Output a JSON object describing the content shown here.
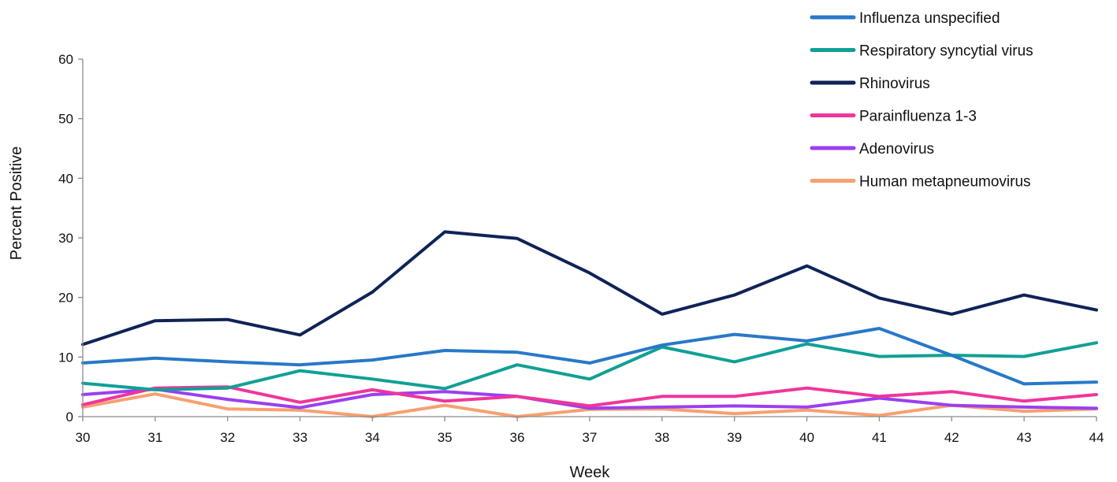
{
  "chart_data": {
    "type": "line",
    "title": "",
    "xlabel": "Week",
    "ylabel": "Percent  Positive",
    "x": [
      30,
      31,
      32,
      33,
      34,
      35,
      36,
      37,
      38,
      39,
      40,
      41,
      42,
      43,
      44
    ],
    "ylim": [
      0,
      60
    ],
    "yticks": [
      0,
      10,
      20,
      30,
      40,
      50,
      60
    ],
    "grid": false,
    "legend_position": "top-right",
    "series": [
      {
        "name": "Influenza unspecified",
        "color": "#2878c8",
        "values": [
          9.0,
          9.8,
          9.2,
          8.7,
          9.5,
          11.1,
          10.8,
          9.0,
          12.0,
          13.8,
          12.7,
          14.8,
          10.3,
          5.5,
          5.8
        ]
      },
      {
        "name": "Respiratory syncytial virus",
        "color": "#10a095",
        "values": [
          5.6,
          4.5,
          4.8,
          7.7,
          6.3,
          4.7,
          8.7,
          6.3,
          11.7,
          9.2,
          12.2,
          10.1,
          10.3,
          10.1,
          12.4
        ]
      },
      {
        "name": "Rhinovirus",
        "color": "#0e2358",
        "values": [
          12.1,
          16.1,
          16.3,
          13.7,
          20.9,
          31.0,
          29.9,
          24.1,
          17.2,
          20.4,
          25.3,
          19.9,
          17.2,
          20.4,
          17.9
        ]
      },
      {
        "name": "Parainfluenza 1-3",
        "color": "#f0359a",
        "values": [
          2.0,
          4.8,
          5.0,
          2.4,
          4.5,
          2.6,
          3.4,
          1.8,
          3.4,
          3.4,
          4.8,
          3.4,
          4.2,
          2.6,
          3.7
        ]
      },
      {
        "name": "Adenovirus",
        "color": "#9b3ff0",
        "values": [
          3.7,
          4.6,
          2.9,
          1.5,
          3.7,
          4.2,
          3.4,
          1.4,
          1.6,
          1.8,
          1.6,
          3.1,
          1.9,
          1.6,
          1.4
        ]
      },
      {
        "name": "Human metapneumovirus",
        "color": "#f7a070",
        "values": [
          1.6,
          3.8,
          1.3,
          1.1,
          0.0,
          1.9,
          0.0,
          1.2,
          1.3,
          0.5,
          1.1,
          0.2,
          1.9,
          0.9,
          1.3
        ]
      }
    ]
  }
}
